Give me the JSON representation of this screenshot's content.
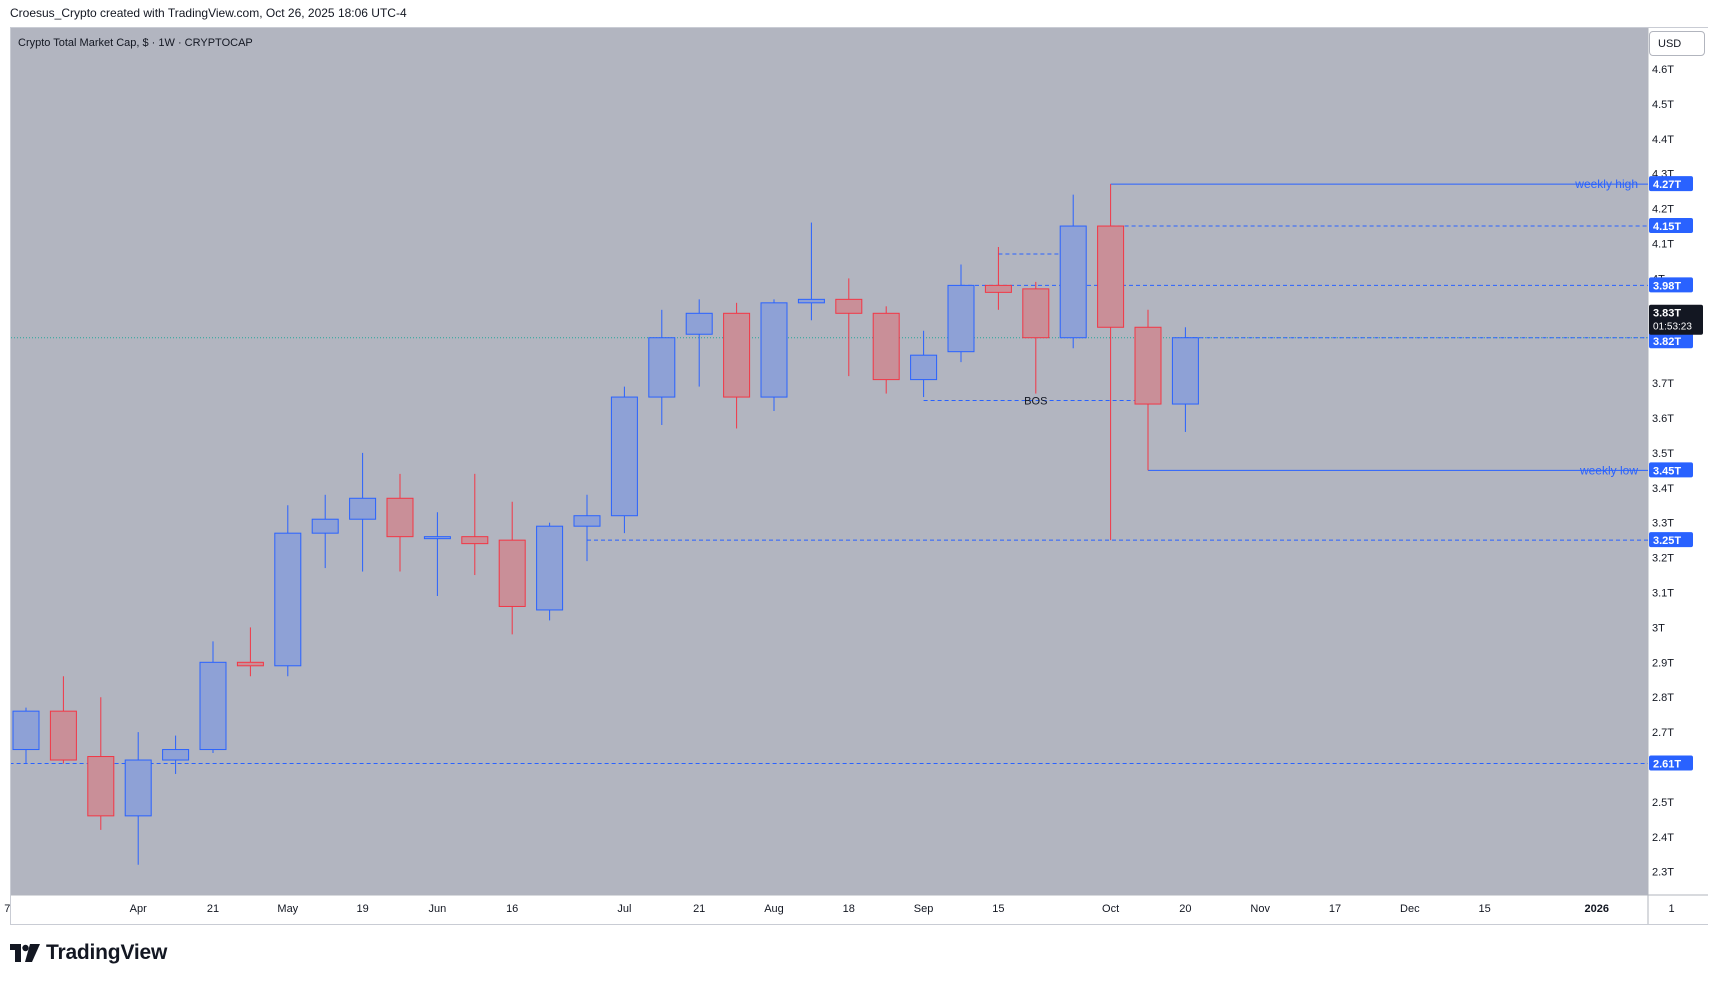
{
  "header": {
    "attribution": "Croesus_Crypto created with TradingView.com, Oct 26, 2025 18:06 UTC-4"
  },
  "branding": {
    "logo_icon": "tradingview-logo-icon",
    "logo_text": "TradingView"
  },
  "toolbar": {
    "currency_button": "USD"
  },
  "chart_data": {
    "type": "candlestick",
    "title": "Crypto Total Market Cap, $ · 1W · CRYPTOCAP",
    "currency": "USD",
    "ylim": [
      2.25,
      4.68
    ],
    "y_ticks": [
      {
        "value": 2.3,
        "label": "2.3T"
      },
      {
        "value": 2.4,
        "label": "2.4T"
      },
      {
        "value": 2.5,
        "label": "2.5T"
      },
      {
        "value": 2.7,
        "label": "2.7T"
      },
      {
        "value": 2.8,
        "label": "2.8T"
      },
      {
        "value": 2.9,
        "label": "2.9T"
      },
      {
        "value": 3.0,
        "label": "3T"
      },
      {
        "value": 3.1,
        "label": "3.1T"
      },
      {
        "value": 3.2,
        "label": "3.2T"
      },
      {
        "value": 3.3,
        "label": "3.3T"
      },
      {
        "value": 3.4,
        "label": "3.4T"
      },
      {
        "value": 3.5,
        "label": "3.5T"
      },
      {
        "value": 3.6,
        "label": "3.6T"
      },
      {
        "value": 3.7,
        "label": "3.7T"
      },
      {
        "value": 4.0,
        "label": "4T"
      },
      {
        "value": 4.1,
        "label": "4.1T"
      },
      {
        "value": 4.2,
        "label": "4.2T"
      },
      {
        "value": 4.3,
        "label": "4.3T"
      },
      {
        "value": 4.4,
        "label": "4.4T"
      },
      {
        "value": 4.5,
        "label": "4.5T"
      },
      {
        "value": 4.6,
        "label": "4.6T"
      }
    ],
    "x_ticks": [
      {
        "index": -0.5,
        "label": "7"
      },
      {
        "index": 3,
        "label": "Apr"
      },
      {
        "index": 5,
        "label": "21"
      },
      {
        "index": 7,
        "label": "May"
      },
      {
        "index": 9,
        "label": "19"
      },
      {
        "index": 11,
        "label": "Jun"
      },
      {
        "index": 13,
        "label": "16"
      },
      {
        "index": 16,
        "label": "Jul"
      },
      {
        "index": 18,
        "label": "21"
      },
      {
        "index": 20,
        "label": "Aug"
      },
      {
        "index": 22,
        "label": "18"
      },
      {
        "index": 24,
        "label": "Sep"
      },
      {
        "index": 26,
        "label": "15"
      },
      {
        "index": 29,
        "label": "Oct"
      },
      {
        "index": 31,
        "label": "20"
      },
      {
        "index": 33,
        "label": "Nov"
      },
      {
        "index": 35,
        "label": "17"
      },
      {
        "index": 37,
        "label": "Dec"
      },
      {
        "index": 39,
        "label": "15"
      },
      {
        "index": 42,
        "label": "2026"
      },
      {
        "index": 44,
        "label": "1"
      }
    ],
    "candles": [
      {
        "i": 0,
        "o": 2.65,
        "h": 2.77,
        "l": 2.61,
        "c": 2.76
      },
      {
        "i": 1,
        "o": 2.76,
        "h": 2.86,
        "l": 2.61,
        "c": 2.62
      },
      {
        "i": 2,
        "o": 2.63,
        "h": 2.8,
        "l": 2.42,
        "c": 2.46
      },
      {
        "i": 3,
        "o": 2.46,
        "h": 2.7,
        "l": 2.32,
        "c": 2.62
      },
      {
        "i": 4,
        "o": 2.62,
        "h": 2.69,
        "l": 2.58,
        "c": 2.65
      },
      {
        "i": 5,
        "o": 2.65,
        "h": 2.96,
        "l": 2.64,
        "c": 2.9
      },
      {
        "i": 6,
        "o": 2.9,
        "h": 3.0,
        "l": 2.86,
        "c": 2.89
      },
      {
        "i": 7,
        "o": 2.89,
        "h": 3.35,
        "l": 2.86,
        "c": 3.27
      },
      {
        "i": 8,
        "o": 3.27,
        "h": 3.38,
        "l": 3.17,
        "c": 3.31
      },
      {
        "i": 9,
        "o": 3.31,
        "h": 3.5,
        "l": 3.16,
        "c": 3.37
      },
      {
        "i": 10,
        "o": 3.37,
        "h": 3.44,
        "l": 3.16,
        "c": 3.26
      },
      {
        "i": 11,
        "o": 3.26,
        "h": 3.33,
        "l": 3.09,
        "c": 3.26
      },
      {
        "i": 12,
        "o": 3.26,
        "h": 3.44,
        "l": 3.15,
        "c": 3.24
      },
      {
        "i": 13,
        "o": 3.25,
        "h": 3.36,
        "l": 2.98,
        "c": 3.06
      },
      {
        "i": 14,
        "o": 3.05,
        "h": 3.3,
        "l": 3.02,
        "c": 3.29
      },
      {
        "i": 15,
        "o": 3.29,
        "h": 3.38,
        "l": 3.19,
        "c": 3.32
      },
      {
        "i": 16,
        "o": 3.32,
        "h": 3.69,
        "l": 3.27,
        "c": 3.66
      },
      {
        "i": 17,
        "o": 3.66,
        "h": 3.91,
        "l": 3.58,
        "c": 3.83
      },
      {
        "i": 18,
        "o": 3.84,
        "h": 3.94,
        "l": 3.69,
        "c": 3.9
      },
      {
        "i": 19,
        "o": 3.9,
        "h": 3.93,
        "l": 3.57,
        "c": 3.66
      },
      {
        "i": 20,
        "o": 3.66,
        "h": 3.94,
        "l": 3.62,
        "c": 3.93
      },
      {
        "i": 21,
        "o": 3.93,
        "h": 4.16,
        "l": 3.88,
        "c": 3.94
      },
      {
        "i": 22,
        "o": 3.94,
        "h": 4.0,
        "l": 3.72,
        "c": 3.9
      },
      {
        "i": 23,
        "o": 3.9,
        "h": 3.92,
        "l": 3.67,
        "c": 3.71
      },
      {
        "i": 24,
        "o": 3.71,
        "h": 3.85,
        "l": 3.66,
        "c": 3.78
      },
      {
        "i": 25,
        "o": 3.79,
        "h": 4.04,
        "l": 3.76,
        "c": 3.98
      },
      {
        "i": 26,
        "o": 3.98,
        "h": 4.09,
        "l": 3.91,
        "c": 3.96
      },
      {
        "i": 27,
        "o": 3.97,
        "h": 3.99,
        "l": 3.67,
        "c": 3.83
      },
      {
        "i": 28,
        "o": 3.83,
        "h": 4.24,
        "l": 3.8,
        "c": 4.15
      },
      {
        "i": 29,
        "o": 4.15,
        "h": 4.27,
        "l": 3.25,
        "c": 3.86
      },
      {
        "i": 30,
        "o": 3.86,
        "h": 3.91,
        "l": 3.45,
        "c": 3.64
      },
      {
        "i": 31,
        "o": 3.64,
        "h": 3.86,
        "l": 3.56,
        "c": 3.83
      }
    ],
    "horizontal_lines": [
      {
        "value": 4.27,
        "label": "4.27T",
        "style": "solid",
        "start_index": 29,
        "annotation": "weekly high"
      },
      {
        "value": 4.15,
        "label": "4.15T",
        "style": "dashed",
        "start_index": 29
      },
      {
        "value": 3.98,
        "label": "3.98T",
        "style": "dashed",
        "start_index": 25
      },
      {
        "value": 3.83,
        "label": "3.83T",
        "style": "dashed",
        "start_index": 31
      },
      {
        "value": 3.82,
        "label": "3.82T",
        "style": "price-line"
      },
      {
        "value": 3.45,
        "label": "3.45T",
        "style": "solid",
        "start_index": 30,
        "annotation": "weekly low"
      },
      {
        "value": 3.25,
        "label": "3.25T",
        "style": "dashed",
        "start_index": 15
      },
      {
        "value": 2.61,
        "label": "2.61T",
        "style": "dashed",
        "start_index": -1
      }
    ],
    "segments": [
      {
        "value": 4.07,
        "from_index": 26,
        "to_index": 28,
        "style": "dashed"
      },
      {
        "value": 3.65,
        "from_index": 24,
        "to_index": 30,
        "style": "dashed",
        "annotation": "BOS"
      }
    ],
    "current_price": {
      "value": 3.83,
      "label": "3.83T",
      "countdown": "01:53:23"
    },
    "colors": {
      "bull_body": "#8ea1d6",
      "bull_border": "#2962ff",
      "bear_body": "#c98f98",
      "bear_border": "#f23645",
      "background": "#b2b5c0",
      "level": "#2962ff",
      "annotation_text": "#2962ff"
    }
  }
}
